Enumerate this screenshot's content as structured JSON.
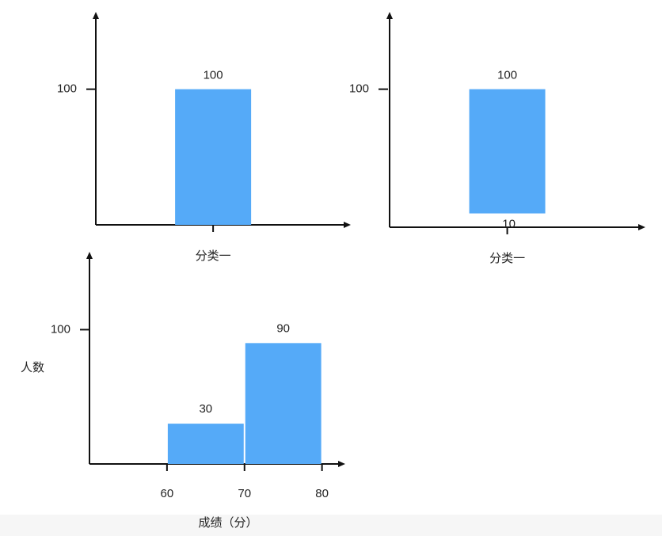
{
  "chart_data": [
    {
      "type": "bar",
      "categories": [
        "分类一"
      ],
      "values": [
        100
      ],
      "color": "#55aaf8",
      "ylim": [
        0,
        157
      ],
      "yticks": [
        100
      ]
    },
    {
      "type": "bar",
      "categories": [
        "分类一"
      ],
      "base": [
        10
      ],
      "values": [
        100
      ],
      "color": "#55aaf8",
      "ylim": [
        0,
        156
      ],
      "yticks": [
        100
      ]
    },
    {
      "type": "histogram",
      "bins": [
        60,
        70,
        80
      ],
      "values": [
        30,
        90
      ],
      "color": "#55aaf8",
      "xlim": [
        50,
        83
      ],
      "xticks": [
        60,
        70,
        80
      ],
      "ylim": [
        0,
        158
      ],
      "yticks": [
        100
      ],
      "xlabel": "成绩（分）",
      "ylabel": "人数"
    }
  ]
}
